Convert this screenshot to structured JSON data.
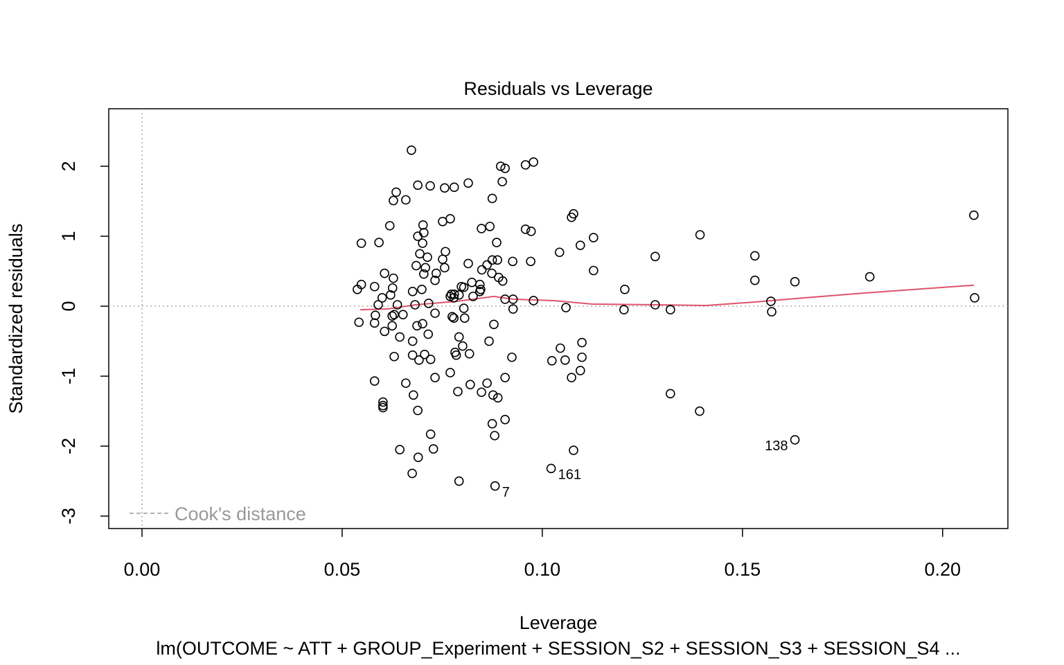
{
  "chart_data": {
    "type": "scatter",
    "title": "Residuals vs Leverage",
    "x_label": "Leverage",
    "y_label": "Standardized residuals",
    "subtitle": "lm(OUTCOME ~ ATT + GROUP_Experiment + SESSION_S2 + SESSION_S3 + SESSION_S4  ...",
    "legend": {
      "label": "Cook's distance",
      "color": "#999999",
      "position": "bottom-left"
    },
    "reference_lines": {
      "x": 0,
      "y": 0,
      "color": "#aaaaaa"
    },
    "xlim": [
      -0.0083,
      0.2163
    ],
    "ylim": [
      -3.178,
      2.822
    ],
    "xticks": [
      {
        "value": 0,
        "label": "0.00"
      },
      0.05,
      {
        "value": 0.1,
        "label": "0.10"
      },
      0.15,
      {
        "value": 0.2,
        "label": "0.20"
      }
    ],
    "yticks": [
      -3,
      -2,
      -1,
      0,
      1,
      2
    ],
    "color": "#000000",
    "points": [
      {
        "x": 0.0673,
        "y": 2.23
      },
      {
        "x": 0.0896,
        "y": 2.0
      },
      {
        "x": 0.0907,
        "y": 1.97
      },
      {
        "x": 0.0958,
        "y": 2.02
      },
      {
        "x": 0.0978,
        "y": 2.06
      },
      {
        "x": 0.0635,
        "y": 1.63
      },
      {
        "x": 0.0689,
        "y": 1.73
      },
      {
        "x": 0.072,
        "y": 1.72
      },
      {
        "x": 0.0756,
        "y": 1.69
      },
      {
        "x": 0.078,
        "y": 1.7
      },
      {
        "x": 0.0815,
        "y": 1.76
      },
      {
        "x": 0.09,
        "y": 1.78
      },
      {
        "x": 0.0628,
        "y": 1.51
      },
      {
        "x": 0.0659,
        "y": 1.52
      },
      {
        "x": 0.0875,
        "y": 1.54
      },
      {
        "x": 0.2078,
        "y": 1.3
      },
      {
        "x": 0.1078,
        "y": 1.32
      },
      {
        "x": 0.1073,
        "y": 1.27
      },
      {
        "x": 0.077,
        "y": 1.25
      },
      {
        "x": 0.0751,
        "y": 1.21
      },
      {
        "x": 0.0702,
        "y": 1.16
      },
      {
        "x": 0.0619,
        "y": 1.15
      },
      {
        "x": 0.0848,
        "y": 1.11
      },
      {
        "x": 0.0869,
        "y": 1.14
      },
      {
        "x": 0.0958,
        "y": 1.1
      },
      {
        "x": 0.0972,
        "y": 1.07
      },
      {
        "x": 0.0704,
        "y": 1.05
      },
      {
        "x": 0.0689,
        "y": 1.0
      },
      {
        "x": 0.1394,
        "y": 1.02
      },
      {
        "x": 0.1128,
        "y": 0.98
      },
      {
        "x": 0.0548,
        "y": 0.9
      },
      {
        "x": 0.0592,
        "y": 0.91
      },
      {
        "x": 0.0701,
        "y": 0.9
      },
      {
        "x": 0.0886,
        "y": 0.91
      },
      {
        "x": 0.1095,
        "y": 0.87
      },
      {
        "x": 0.0758,
        "y": 0.78
      },
      {
        "x": 0.1043,
        "y": 0.77
      },
      {
        "x": 0.0694,
        "y": 0.75
      },
      {
        "x": 0.0713,
        "y": 0.7
      },
      {
        "x": 0.0751,
        "y": 0.67
      },
      {
        "x": 0.0875,
        "y": 0.66
      },
      {
        "x": 0.0888,
        "y": 0.66
      },
      {
        "x": 0.0926,
        "y": 0.64
      },
      {
        "x": 0.0971,
        "y": 0.64
      },
      {
        "x": 0.1282,
        "y": 0.71
      },
      {
        "x": 0.1531,
        "y": 0.72
      },
      {
        "x": 0.0685,
        "y": 0.58
      },
      {
        "x": 0.0708,
        "y": 0.55
      },
      {
        "x": 0.0815,
        "y": 0.61
      },
      {
        "x": 0.0862,
        "y": 0.59
      },
      {
        "x": 0.0756,
        "y": 0.55
      },
      {
        "x": 0.0849,
        "y": 0.52
      },
      {
        "x": 0.0735,
        "y": 0.47
      },
      {
        "x": 0.0606,
        "y": 0.47
      },
      {
        "x": 0.0704,
        "y": 0.46
      },
      {
        "x": 0.0874,
        "y": 0.47
      },
      {
        "x": 0.0891,
        "y": 0.41
      },
      {
        "x": 0.1128,
        "y": 0.51
      },
      {
        "x": 0.0628,
        "y": 0.4
      },
      {
        "x": 0.0732,
        "y": 0.37
      },
      {
        "x": 0.1818,
        "y": 0.42
      },
      {
        "x": 0.0901,
        "y": 0.36
      },
      {
        "x": 0.1531,
        "y": 0.37
      },
      {
        "x": 0.0548,
        "y": 0.31
      },
      {
        "x": 0.0538,
        "y": 0.24
      },
      {
        "x": 0.0581,
        "y": 0.28
      },
      {
        "x": 0.0626,
        "y": 0.26
      },
      {
        "x": 0.0699,
        "y": 0.24
      },
      {
        "x": 0.0676,
        "y": 0.21
      },
      {
        "x": 0.0798,
        "y": 0.28
      },
      {
        "x": 0.0804,
        "y": 0.27
      },
      {
        "x": 0.0824,
        "y": 0.34
      },
      {
        "x": 0.0844,
        "y": 0.31
      },
      {
        "x": 0.0846,
        "y": 0.24
      },
      {
        "x": 0.1631,
        "y": 0.35
      },
      {
        "x": 0.1206,
        "y": 0.24
      },
      {
        "x": 0.06,
        "y": 0.12
      },
      {
        "x": 0.0621,
        "y": 0.16
      },
      {
        "x": 0.0773,
        "y": 0.17
      },
      {
        "x": 0.077,
        "y": 0.14
      },
      {
        "x": 0.078,
        "y": 0.17
      },
      {
        "x": 0.0792,
        "y": 0.16
      },
      {
        "x": 0.0827,
        "y": 0.14
      },
      {
        "x": 0.0844,
        "y": 0.21
      },
      {
        "x": 0.0907,
        "y": 0.1
      },
      {
        "x": 0.0927,
        "y": 0.1
      },
      {
        "x": 0.0978,
        "y": 0.08
      },
      {
        "x": 0.208,
        "y": 0.12
      },
      {
        "x": 0.1571,
        "y": 0.07
      },
      {
        "x": 0.1282,
        "y": 0.02
      },
      {
        "x": 0.059,
        "y": 0.02
      },
      {
        "x": 0.0638,
        "y": 0.02
      },
      {
        "x": 0.0682,
        "y": 0.02
      },
      {
        "x": 0.0716,
        "y": 0.04
      },
      {
        "x": 0.0779,
        "y": 0.12
      },
      {
        "x": 0.063,
        "y": -0.12
      },
      {
        "x": 0.0625,
        "y": -0.14
      },
      {
        "x": 0.0652,
        "y": -0.12
      },
      {
        "x": 0.0583,
        "y": -0.13
      },
      {
        "x": 0.0732,
        "y": -0.1
      },
      {
        "x": 0.0804,
        "y": -0.03
      },
      {
        "x": 0.1059,
        "y": -0.02
      },
      {
        "x": 0.0927,
        "y": -0.04
      },
      {
        "x": 0.1204,
        "y": -0.05
      },
      {
        "x": 0.132,
        "y": -0.05
      },
      {
        "x": 0.1573,
        "y": -0.08
      },
      {
        "x": 0.0775,
        "y": -0.15
      },
      {
        "x": 0.0779,
        "y": -0.17
      },
      {
        "x": 0.0806,
        "y": -0.17
      },
      {
        "x": 0.0542,
        "y": -0.23
      },
      {
        "x": 0.0581,
        "y": -0.24
      },
      {
        "x": 0.0625,
        "y": -0.28
      },
      {
        "x": 0.0687,
        "y": -0.28
      },
      {
        "x": 0.0701,
        "y": -0.25
      },
      {
        "x": 0.0879,
        "y": -0.26
      },
      {
        "x": 0.0606,
        "y": -0.36
      },
      {
        "x": 0.0715,
        "y": -0.4
      },
      {
        "x": 0.0644,
        "y": -0.44
      },
      {
        "x": 0.0792,
        "y": -0.44
      },
      {
        "x": 0.0676,
        "y": -0.5
      },
      {
        "x": 0.0867,
        "y": -0.5
      },
      {
        "x": 0.0801,
        "y": -0.57
      },
      {
        "x": 0.1099,
        "y": -0.52
      },
      {
        "x": 0.1045,
        "y": -0.6
      },
      {
        "x": 0.0782,
        "y": -0.66
      },
      {
        "x": 0.0785,
        "y": -0.7
      },
      {
        "x": 0.0818,
        "y": -0.68
      },
      {
        "x": 0.0676,
        "y": -0.7
      },
      {
        "x": 0.0706,
        "y": -0.69
      },
      {
        "x": 0.063,
        "y": -0.72
      },
      {
        "x": 0.0721,
        "y": -0.76
      },
      {
        "x": 0.0692,
        "y": -0.77
      },
      {
        "x": 0.0924,
        "y": -0.73
      },
      {
        "x": 0.1099,
        "y": -0.73
      },
      {
        "x": 0.1024,
        "y": -0.78
      },
      {
        "x": 0.1057,
        "y": -0.77
      },
      {
        "x": 0.077,
        "y": -0.95
      },
      {
        "x": 0.0732,
        "y": -1.02
      },
      {
        "x": 0.0581,
        "y": -1.07
      },
      {
        "x": 0.1095,
        "y": -0.92
      },
      {
        "x": 0.1073,
        "y": -1.02
      },
      {
        "x": 0.0907,
        "y": -1.02
      },
      {
        "x": 0.0659,
        "y": -1.1
      },
      {
        "x": 0.082,
        "y": -1.12
      },
      {
        "x": 0.0862,
        "y": -1.1
      },
      {
        "x": 0.0789,
        "y": -1.22
      },
      {
        "x": 0.0848,
        "y": -1.23
      },
      {
        "x": 0.0678,
        "y": -1.27
      },
      {
        "x": 0.0877,
        "y": -1.27
      },
      {
        "x": 0.0889,
        "y": -1.31
      },
      {
        "x": 0.132,
        "y": -1.25
      },
      {
        "x": 0.0602,
        "y": -1.37
      },
      {
        "x": 0.0602,
        "y": -1.42
      },
      {
        "x": 0.0602,
        "y": -1.45
      },
      {
        "x": 0.0689,
        "y": -1.49
      },
      {
        "x": 0.1393,
        "y": -1.5
      },
      {
        "x": 0.0907,
        "y": -1.62
      },
      {
        "x": 0.0875,
        "y": -1.68
      },
      {
        "x": 0.0721,
        "y": -1.83
      },
      {
        "x": 0.0881,
        "y": -1.85
      },
      {
        "x": 0.1631,
        "y": -1.91,
        "label": "138"
      },
      {
        "x": 0.0644,
        "y": -2.05
      },
      {
        "x": 0.0728,
        "y": -2.04
      },
      {
        "x": 0.1078,
        "y": -2.06
      },
      {
        "x": 0.069,
        "y": -2.16
      },
      {
        "x": 0.1022,
        "y": -2.32,
        "label": "161"
      },
      {
        "x": 0.0675,
        "y": -2.39
      },
      {
        "x": 0.0792,
        "y": -2.5
      },
      {
        "x": 0.0882,
        "y": -2.57,
        "label": "7"
      }
    ],
    "smooth": {
      "color": "#DF536B",
      "x": [
        0.0545,
        0.0614,
        0.0683,
        0.0787,
        0.0879,
        0.0926,
        0.1029,
        0.1125,
        0.1289,
        0.141,
        0.1531,
        0.1635,
        0.1808,
        0.2078
      ],
      "y": [
        -0.05,
        -0.04,
        0.02,
        0.07,
        0.14,
        0.1,
        0.08,
        0.03,
        0.02,
        0.01,
        0.06,
        0.11,
        0.19,
        0.3
      ]
    }
  }
}
